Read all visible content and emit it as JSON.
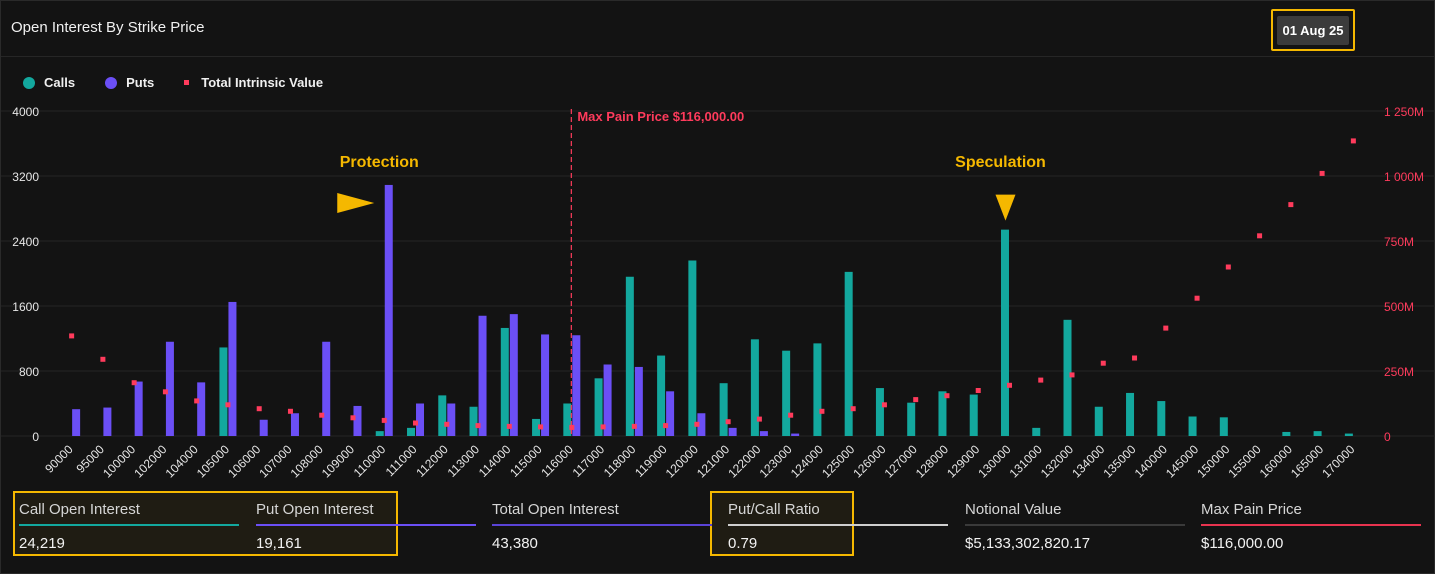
{
  "header": {
    "title": "Open Interest By Strike Price",
    "date_button": "01 Aug 25"
  },
  "legend": [
    {
      "label": "Calls",
      "color": "#13a89e",
      "shape": "circle"
    },
    {
      "label": "Puts",
      "color": "#6b4ff6",
      "shape": "circle"
    },
    {
      "label": "Total Intrinsic Value",
      "color": "#ff3b5c",
      "shape": "square"
    }
  ],
  "annotations": {
    "protection": "Protection",
    "speculation": "Speculation",
    "max_pain_label": "Max Pain Price $116,000.00"
  },
  "chart_data": {
    "type": "bar",
    "categories": [
      "90000",
      "95000",
      "100000",
      "102000",
      "104000",
      "105000",
      "106000",
      "107000",
      "108000",
      "109000",
      "110000",
      "111000",
      "112000",
      "113000",
      "114000",
      "115000",
      "116000",
      "117000",
      "118000",
      "119000",
      "120000",
      "121000",
      "122000",
      "123000",
      "124000",
      "125000",
      "126000",
      "127000",
      "128000",
      "129000",
      "130000",
      "131000",
      "132000",
      "134000",
      "135000",
      "140000",
      "145000",
      "150000",
      "155000",
      "160000",
      "165000",
      "170000"
    ],
    "series": [
      {
        "name": "Calls",
        "color": "#13a89e",
        "axis": "left",
        "values": [
          0,
          0,
          0,
          0,
          0,
          1090,
          0,
          0,
          0,
          0,
          60,
          100,
          500,
          360,
          1330,
          210,
          400,
          710,
          1960,
          990,
          2160,
          650,
          1190,
          1050,
          1140,
          2020,
          590,
          410,
          550,
          510,
          2540,
          100,
          1430,
          360,
          530,
          430,
          240,
          230,
          0,
          50,
          60,
          30
        ]
      },
      {
        "name": "Puts",
        "color": "#6b4ff6",
        "axis": "left",
        "values": [
          330,
          350,
          670,
          1160,
          660,
          1650,
          200,
          280,
          1160,
          370,
          3090,
          400,
          400,
          1480,
          1500,
          1250,
          1240,
          880,
          850,
          550,
          280,
          100,
          60,
          30,
          0,
          0,
          0,
          0,
          0,
          0,
          0,
          0,
          0,
          0,
          0,
          0,
          0,
          0,
          0,
          0,
          0,
          0
        ]
      },
      {
        "name": "Total Intrinsic Value",
        "color": "#ff3b5c",
        "axis": "right",
        "type": "scatter",
        "values": [
          385,
          295,
          205,
          170,
          135,
          120,
          105,
          95,
          80,
          70,
          60,
          50,
          45,
          40,
          37,
          35,
          33,
          35,
          37,
          40,
          45,
          55,
          65,
          80,
          95,
          105,
          120,
          140,
          155,
          175,
          195,
          215,
          235,
          280,
          300,
          415,
          530,
          650,
          770,
          890,
          1010,
          1135
        ]
      }
    ],
    "y_left": {
      "min": 0,
      "max": 4000,
      "ticks": [
        "0",
        "800",
        "1600",
        "2400",
        "3200",
        "4000"
      ]
    },
    "y_right": {
      "min": 0,
      "max": 1250,
      "unit": "M",
      "ticks": [
        "0",
        "250M",
        "500M",
        "750M",
        "1 000M",
        "1 250M"
      ]
    },
    "max_pain_strike": "116000",
    "grid": true,
    "legend_position": "top-left"
  },
  "stats": [
    {
      "label": "Call Open Interest",
      "value": "24,219",
      "color": "#13a89e"
    },
    {
      "label": "Put Open Interest",
      "value": "19,161",
      "color": "#6b4ff6"
    },
    {
      "label": "Total Open Interest",
      "value": "43,380",
      "color": "#5a43d6"
    },
    {
      "label": "Put/Call Ratio",
      "value": "0.79",
      "color": "#cfcfcf"
    },
    {
      "label": "Notional Value",
      "value": "$5,133,302,820.17",
      "color": "#3a3a3a"
    },
    {
      "label": "Max Pain Price",
      "value": "$116,000.00",
      "color": "#e8334f"
    }
  ],
  "colors": {
    "highlight": "#f5b800",
    "annotation": "#f5b800",
    "max_pain": "#ff3b5c"
  }
}
